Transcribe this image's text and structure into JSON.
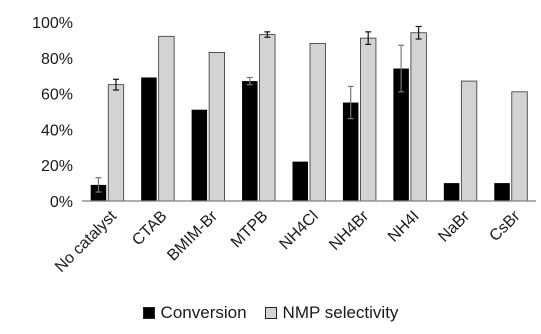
{
  "chart_data": {
    "type": "bar",
    "categories": [
      "No catalyst",
      "CTAB",
      "BMIM-Br",
      "MTPB",
      "NH4Cl",
      "NH4Br",
      "NH4I",
      "NaBr",
      "CsBr"
    ],
    "series": [
      {
        "name": "Conversion",
        "values": [
          9,
          69,
          51,
          67,
          22,
          55,
          74,
          10,
          10
        ],
        "errors": [
          4,
          null,
          null,
          2,
          null,
          9,
          13,
          null,
          null
        ],
        "color": "#000000"
      },
      {
        "name": "NMP selectivity",
        "values": [
          65,
          92,
          83,
          93,
          88,
          91,
          94,
          67,
          61
        ],
        "errors": [
          3,
          null,
          null,
          1.5,
          null,
          3.5,
          3.5,
          null,
          null
        ],
        "color": "#d3d3d3"
      }
    ],
    "ylim": [
      0,
      100
    ],
    "yticks": [
      "0%",
      "20%",
      "40%",
      "60%",
      "80%",
      "100%"
    ],
    "xlabel": "",
    "ylabel": "",
    "title": "",
    "grid": false,
    "legend_position": "bottom"
  }
}
